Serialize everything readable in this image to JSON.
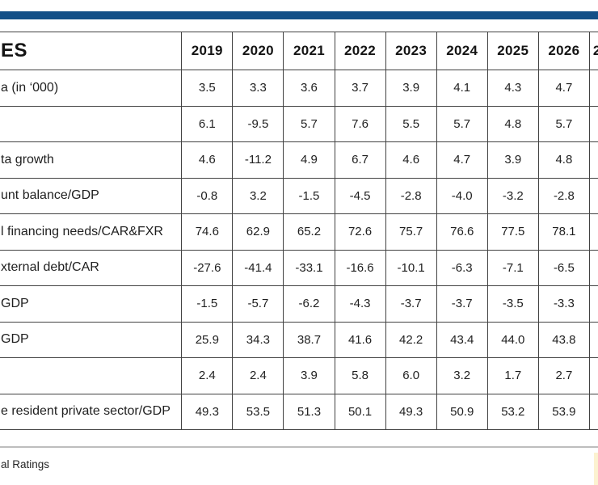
{
  "accent_color": "#134f87",
  "table": {
    "corner_label": "ES",
    "years": [
      "2019",
      "2020",
      "2021",
      "2022",
      "2023",
      "2024",
      "2025",
      "2026"
    ],
    "partial_year": "2",
    "rows": [
      {
        "label": "a (in ‘000)",
        "values": [
          "3.5",
          "3.3",
          "3.6",
          "3.7",
          "3.9",
          "4.1",
          "4.3",
          "4.7"
        ]
      },
      {
        "label": "",
        "values": [
          "6.1",
          "-9.5",
          "5.7",
          "7.6",
          "5.5",
          "5.7",
          "4.8",
          "5.7"
        ]
      },
      {
        "label": "ta growth",
        "values": [
          "4.6",
          "-11.2",
          "4.9",
          "6.7",
          "4.6",
          "4.7",
          "3.9",
          "4.8"
        ]
      },
      {
        "label": "unt balance/GDP",
        "values": [
          "-0.8",
          "3.2",
          "-1.5",
          "-4.5",
          "-2.8",
          "-4.0",
          "-3.2",
          "-2.8"
        ]
      },
      {
        "label": "l financing needs/CAR&FXR",
        "values": [
          "74.6",
          "62.9",
          "65.2",
          "72.6",
          "75.7",
          "76.6",
          "77.5",
          "78.1"
        ]
      },
      {
        "label": "xternal debt/CAR",
        "values": [
          "-27.6",
          "-41.4",
          "-33.1",
          "-16.6",
          "-10.1",
          "-6.3",
          "-7.1",
          "-6.5"
        ]
      },
      {
        "label": "GDP",
        "values": [
          "-1.5",
          "-5.7",
          "-6.2",
          "-4.3",
          "-3.7",
          "-3.7",
          "-3.5",
          "-3.3"
        ]
      },
      {
        "label": "GDP",
        "values": [
          "25.9",
          "34.3",
          "38.7",
          "41.6",
          "42.2",
          "43.4",
          "44.0",
          "43.8"
        ]
      },
      {
        "label": "",
        "values": [
          "2.4",
          "2.4",
          "3.9",
          "5.8",
          "6.0",
          "3.2",
          "1.7",
          "2.7"
        ]
      },
      {
        "label": "e resident private sector/GDP",
        "values": [
          "49.3",
          "53.5",
          "51.3",
          "50.1",
          "49.3",
          "50.9",
          "53.2",
          "53.9"
        ]
      }
    ]
  },
  "footer": {
    "source_text": "al Ratings"
  }
}
